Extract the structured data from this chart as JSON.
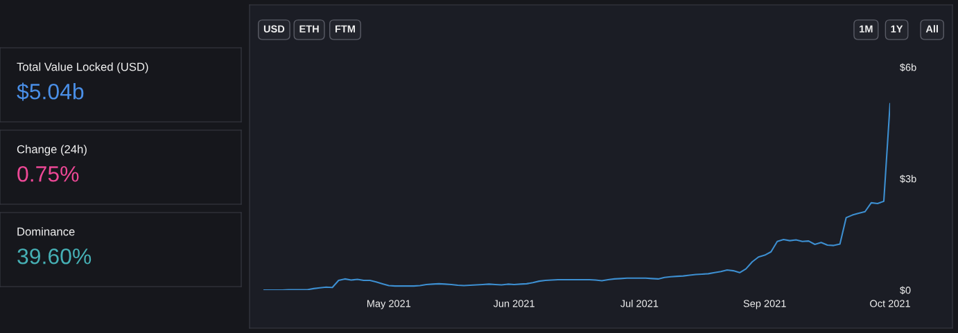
{
  "chart_data": [
    {
      "type": "other",
      "title": "Total Value Locked (USD)",
      "annotations": [
        "$5.04b"
      ],
      "color": "#4a8fe7"
    },
    {
      "type": "other",
      "title": "Change (24h)",
      "annotations": [
        "0.75%"
      ],
      "color": "#ed4896"
    },
    {
      "type": "other",
      "title": "Dominance",
      "annotations": [
        "39.60%"
      ],
      "color": "#46b0b5"
    },
    {
      "type": "line",
      "annotations": [
        "USD",
        "ETH",
        "FTM",
        "1M",
        "1Y",
        "All"
      ],
      "grid": false,
      "legend": false,
      "marker": "none",
      "line_style": "solid",
      "ylim": [
        0,
        6
      ],
      "categories": [
        null,
        null,
        null,
        null,
        null,
        null,
        null,
        null,
        null,
        null,
        null,
        null,
        null,
        null,
        null,
        null,
        null,
        null,
        null,
        null,
        "May 2021",
        null,
        null,
        null,
        null,
        null,
        null,
        null,
        null,
        null,
        null,
        null,
        null,
        null,
        null,
        null,
        null,
        null,
        null,
        null,
        "Jun 2021",
        null,
        null,
        null,
        null,
        null,
        null,
        null,
        null,
        null,
        null,
        null,
        null,
        null,
        null,
        null,
        null,
        null,
        null,
        null,
        "Jul 2021",
        null,
        null,
        null,
        null,
        null,
        null,
        null,
        null,
        null,
        null,
        null,
        null,
        null,
        null,
        null,
        null,
        null,
        null,
        null,
        "Sep 2021",
        null,
        null,
        null,
        null,
        null,
        null,
        null,
        null,
        null,
        null,
        null,
        null,
        null,
        null,
        null,
        null,
        null,
        null,
        null,
        "Oct 2021"
      ],
      "yticks": [
        {
          "value": 0,
          "label": "$0"
        },
        {
          "value": 3,
          "label": "$3b"
        },
        {
          "value": 6,
          "label": "$6b"
        }
      ],
      "series": [
        {
          "color": "#3d8fd1",
          "values": [
            0,
            0,
            0,
            0,
            0.01,
            0.01,
            0.01,
            0.01,
            0.04,
            0.06,
            0.08,
            0.07,
            0.26,
            0.3,
            0.27,
            0.29,
            0.26,
            0.26,
            0.22,
            0.17,
            0.12,
            0.11,
            0.11,
            0.11,
            0.11,
            0.12,
            0.15,
            0.16,
            0.17,
            0.16,
            0.15,
            0.13,
            0.12,
            0.13,
            0.14,
            0.15,
            0.16,
            0.15,
            0.14,
            0.16,
            0.15,
            0.16,
            0.17,
            0.2,
            0.24,
            0.26,
            0.27,
            0.28,
            0.28,
            0.28,
            0.28,
            0.28,
            0.28,
            0.27,
            0.25,
            0.28,
            0.3,
            0.31,
            0.32,
            0.32,
            0.32,
            0.32,
            0.31,
            0.3,
            0.34,
            0.36,
            0.37,
            0.38,
            0.4,
            0.42,
            0.43,
            0.44,
            0.47,
            0.5,
            0.54,
            0.52,
            0.47,
            0.57,
            0.76,
            0.89,
            0.94,
            1.03,
            1.31,
            1.36,
            1.33,
            1.35,
            1.31,
            1.32,
            1.23,
            1.28,
            1.21,
            1.2,
            1.24,
            1.95,
            2.02,
            2.07,
            2.11,
            2.35,
            2.33,
            2.39,
            5.02
          ]
        }
      ]
    }
  ]
}
